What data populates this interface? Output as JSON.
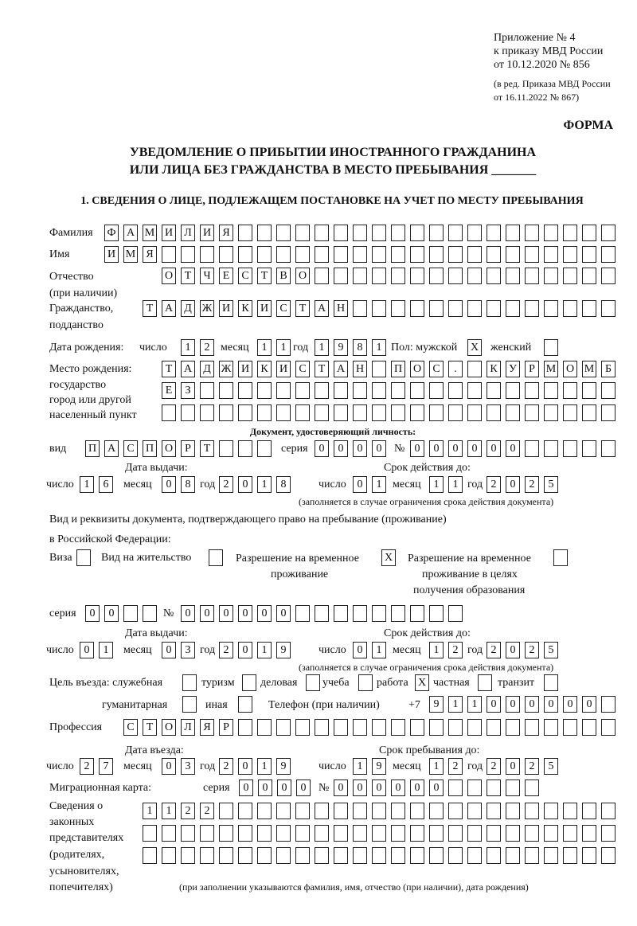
{
  "header": {
    "appendix": "Приложение № 4",
    "order": "к приказу МВД России",
    "order_date": "от 10.12.2020 № 856",
    "edition1": "(в ред. Приказа МВД России",
    "edition2": "от 16.11.2022 № 867)",
    "form_label": "ФОРМА",
    "title1": "УВЕДОМЛЕНИЕ О ПРИБЫТИИ ИНОСТРАННОГО ГРАЖДАНИНА",
    "title2": "ИЛИ ЛИЦА БЕЗ ГРАЖДАНСТВА В МЕСТО ПРЕБЫВАНИЯ _______",
    "section1": "1. СВЕДЕНИЯ О ЛИЦЕ, ПОДЛЕЖАЩЕМ ПОСТАНОВКЕ НА УЧЕТ ПО МЕСТУ ПРЕБЫВАНИЯ"
  },
  "labels": {
    "surname": "Фамилия",
    "name": "Имя",
    "patronymic": "Отчество",
    "patronymic2": "(при наличии)",
    "citizenship": "Гражданство,",
    "citizenship2": "подданство",
    "dob": "Дата рождения:",
    "day": "число",
    "month": "месяц",
    "year": "год",
    "sex": "Пол: мужской",
    "female": "женский",
    "birthplace": "Место рождения:",
    "birthplace2": "государство",
    "birthplace3": "город или другой",
    "birthplace4": "населенный пункт",
    "id_doc": "Документ, удостоверяющий личность:",
    "doc_type": "вид",
    "series": "серия",
    "number": "№",
    "issue_date": "Дата выдачи:",
    "valid_until": "Срок действия до:",
    "validity_note": "(заполняется в случае ограничения срока действия документа)",
    "stay_doc1": "Вид и реквизиты документа, подтверждающего право на пребывание (проживание)",
    "stay_doc2": "в Российской Федерации:",
    "visa": "Виза",
    "residence": "Вид на жительство",
    "trp1": "Разрешение на временное",
    "trp2": "проживание",
    "trpe1": "Разрешение на временное",
    "trpe2": "проживание в целях",
    "trpe3": "получения образования",
    "purpose": "Цель въезда: служебная",
    "tourism": "туризм",
    "business": "деловая",
    "study": "учеба",
    "work": "работа",
    "private": "частная",
    "transit": "транзит",
    "humanitarian": "гуманитарная",
    "other": "иная",
    "phone": "Телефон (при наличии)",
    "phone_prefix": "+7",
    "profession": "Профессия",
    "entry_date": "Дата въезда:",
    "stay_until": "Срок пребывания до:",
    "migration_card": "Миграционная карта:",
    "reps1": "Сведения о",
    "reps2": "законных",
    "reps3": "представителях",
    "reps4": "(родителях,",
    "reps5": "усыновителях,",
    "reps6": "попечителях)",
    "reps_note": "(при заполнении указываются фамилия, имя, отчество (при наличии), дата рождения)"
  },
  "fields": {
    "surname": [
      "Ф",
      "А",
      "М",
      "И",
      "Л",
      "И",
      "Я"
    ],
    "name": [
      "И",
      "М",
      "Я"
    ],
    "patronymic": [
      "О",
      "Т",
      "Ч",
      "Е",
      "С",
      "Т",
      "В",
      "О"
    ],
    "citizenship": [
      "Т",
      "А",
      "Д",
      "Ж",
      "И",
      "К",
      "И",
      "С",
      "Т",
      "А",
      "Н"
    ],
    "dob_day": [
      "1",
      "2"
    ],
    "dob_month": [
      "1",
      "1"
    ],
    "dob_year": [
      "1",
      "9",
      "8",
      "1"
    ],
    "sex_male": "X",
    "sex_female": "",
    "birthplace_1": [
      "Т",
      "А",
      "Д",
      "Ж",
      "И",
      "К",
      "И",
      "С",
      "Т",
      "А",
      "Н",
      "",
      "П",
      "О",
      "С",
      ".",
      "",
      "К",
      "У",
      "Р",
      "М",
      "О",
      "М",
      "Б"
    ],
    "birthplace_2": [
      "Е",
      "З"
    ],
    "birthplace_3": [],
    "doc_type": [
      "П",
      "А",
      "С",
      "П",
      "О",
      "Р",
      "Т"
    ],
    "doc_series": [
      "0",
      "0",
      "0",
      "0"
    ],
    "doc_number": [
      "0",
      "0",
      "0",
      "0",
      "0",
      "0"
    ],
    "doc_issue_day": [
      "1",
      "6"
    ],
    "doc_issue_month": [
      "0",
      "8"
    ],
    "doc_issue_year": [
      "2",
      "0",
      "1",
      "8"
    ],
    "doc_valid_day": [
      "0",
      "1"
    ],
    "doc_valid_month": [
      "1",
      "1"
    ],
    "doc_valid_year": [
      "2",
      "0",
      "2",
      "5"
    ],
    "stay_visa": "",
    "stay_residence": "",
    "stay_trp": "X",
    "stay_trp_edu": "",
    "stay_series": [
      "0",
      "0"
    ],
    "stay_number": [
      "0",
      "0",
      "0",
      "0",
      "0",
      "0"
    ],
    "stay_issue_day": [
      "0",
      "1"
    ],
    "stay_issue_month": [
      "0",
      "3"
    ],
    "stay_issue_year": [
      "2",
      "0",
      "1",
      "9"
    ],
    "stay_valid_day": [
      "0",
      "1"
    ],
    "stay_valid_month": [
      "1",
      "2"
    ],
    "stay_valid_year": [
      "2",
      "0",
      "2",
      "5"
    ],
    "purpose_official": "",
    "purpose_tourism": "",
    "purpose_business": "",
    "purpose_study": "",
    "purpose_work": "X",
    "purpose_private": "",
    "purpose_transit": "",
    "purpose_humanitarian": "",
    "purpose_other": "",
    "phone": [
      "9",
      "1",
      "1",
      "0",
      "0",
      "0",
      "0",
      "0",
      "0"
    ],
    "profession": [
      "С",
      "Т",
      "О",
      "Л",
      "Я",
      "Р"
    ],
    "entry_day": [
      "2",
      "7"
    ],
    "entry_month": [
      "0",
      "3"
    ],
    "entry_year": [
      "2",
      "0",
      "1",
      "9"
    ],
    "stay_until_day": [
      "1",
      "9"
    ],
    "stay_until_month": [
      "1",
      "2"
    ],
    "stay_until_year": [
      "2",
      "0",
      "2",
      "5"
    ],
    "mig_series": [
      "0",
      "0",
      "0",
      "0"
    ],
    "mig_number": [
      "0",
      "0",
      "0",
      "0",
      "0",
      "0"
    ],
    "reps_1": [
      "1",
      "1",
      "2",
      "2"
    ],
    "reps_2": [],
    "reps_3": []
  }
}
